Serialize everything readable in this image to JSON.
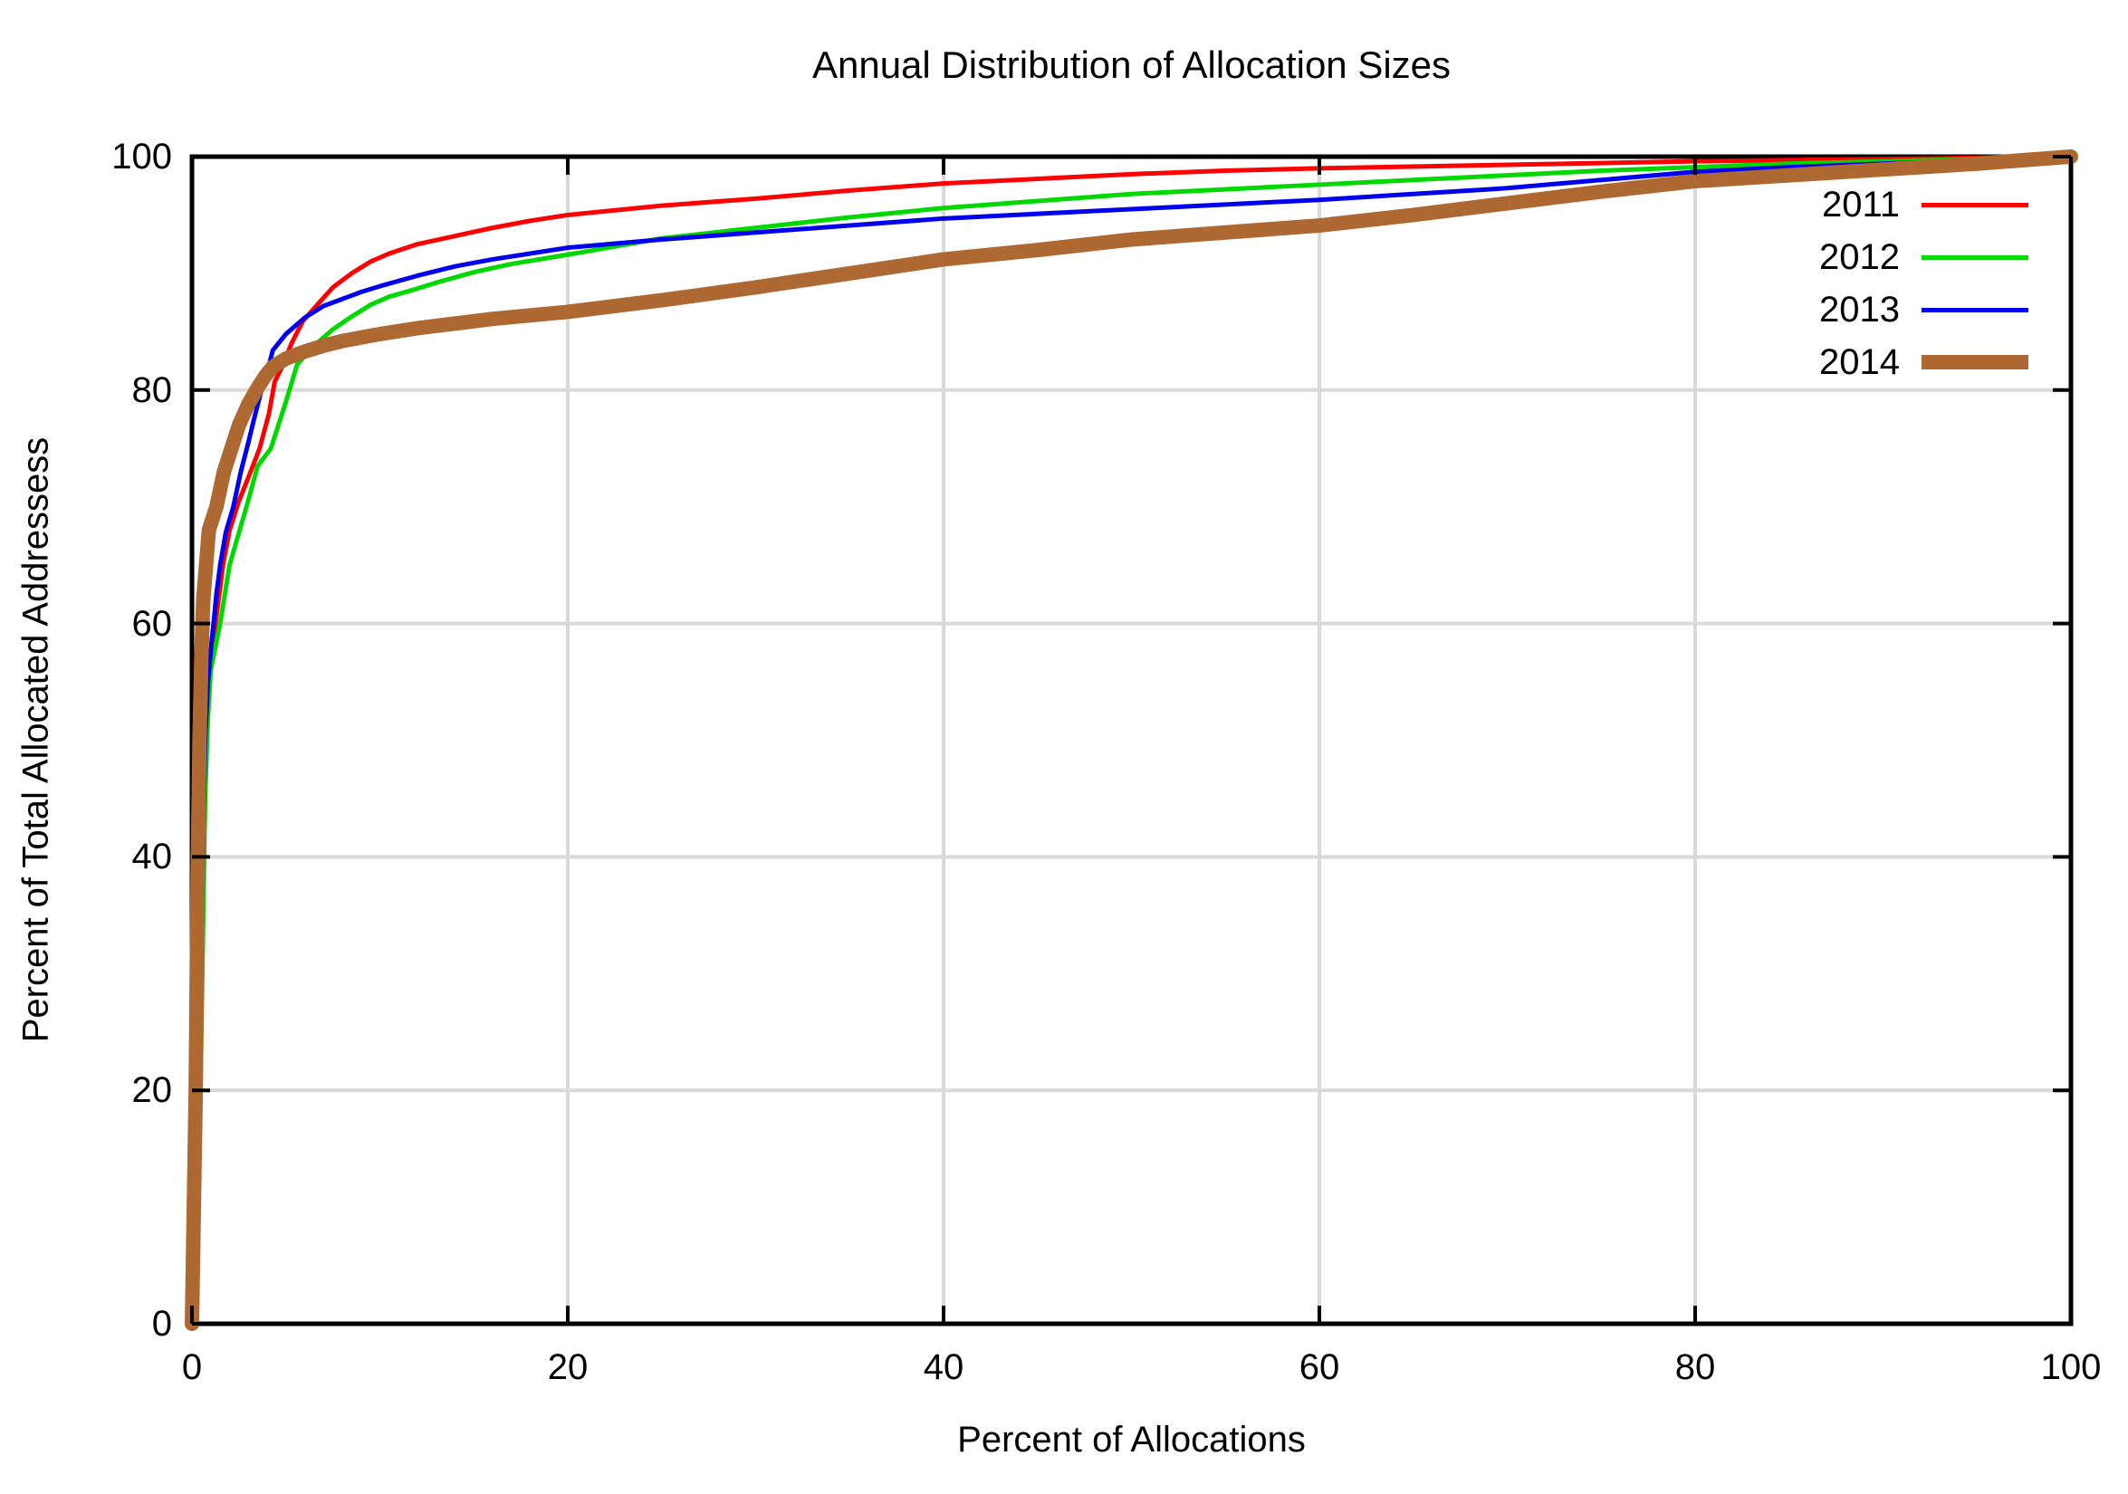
{
  "title": "Annual Distribution of Allocation Sizes",
  "chart_data": {
    "type": "line",
    "title": "Annual Distribution of Allocation Sizes",
    "xlabel": "Percent of Allocations",
    "ylabel": "Percent of Total Allocated Addressess",
    "xlim": [
      0,
      100
    ],
    "ylim": [
      0,
      100
    ],
    "xticks": [
      0,
      20,
      40,
      60,
      80,
      100
    ],
    "yticks": [
      0,
      20,
      40,
      60,
      80,
      100
    ],
    "grid": true,
    "grid_color": "#d9d9d9",
    "border_color": "#000000",
    "legend_position": "top-right-inside",
    "series": [
      {
        "name": "2011",
        "color": "#ff0000",
        "stroke_width": 5,
        "points": [
          [
            0,
            0
          ],
          [
            0.3,
            15
          ],
          [
            0.45,
            30
          ],
          [
            0.55,
            40
          ],
          [
            0.65,
            48
          ],
          [
            0.8,
            53
          ],
          [
            1.0,
            57
          ],
          [
            1.25,
            60
          ],
          [
            1.65,
            65
          ],
          [
            2.0,
            68
          ],
          [
            2.5,
            70.5
          ],
          [
            3.0,
            72.5
          ],
          [
            3.6,
            75
          ],
          [
            4.1,
            78
          ],
          [
            4.4,
            80.7
          ],
          [
            4.8,
            82
          ],
          [
            5.3,
            84
          ],
          [
            5.9,
            85.9
          ],
          [
            6.5,
            87
          ],
          [
            7.5,
            88.8
          ],
          [
            8.5,
            90
          ],
          [
            9.5,
            91
          ],
          [
            10.5,
            91.7
          ],
          [
            12,
            92.5
          ],
          [
            14,
            93.2
          ],
          [
            16,
            93.9
          ],
          [
            18,
            94.5
          ],
          [
            20,
            95.0
          ],
          [
            25,
            95.8
          ],
          [
            30,
            96.4
          ],
          [
            35,
            97.1
          ],
          [
            40,
            97.7
          ],
          [
            45,
            98.1
          ],
          [
            50,
            98.5
          ],
          [
            55,
            98.8
          ],
          [
            60,
            99.0
          ],
          [
            70,
            99.3
          ],
          [
            80,
            99.6
          ],
          [
            90,
            99.8
          ],
          [
            100,
            100
          ]
        ]
      },
      {
        "name": "2012",
        "color": "#00d800",
        "stroke_width": 5,
        "points": [
          [
            0,
            0
          ],
          [
            0.4,
            15
          ],
          [
            0.55,
            30
          ],
          [
            0.7,
            45
          ],
          [
            0.85,
            52
          ],
          [
            1.0,
            56
          ],
          [
            1.5,
            60
          ],
          [
            2.0,
            65
          ],
          [
            2.9,
            70
          ],
          [
            3.5,
            73.5
          ],
          [
            4.2,
            75
          ],
          [
            4.6,
            77
          ],
          [
            5.0,
            79
          ],
          [
            5.6,
            82.2
          ],
          [
            6.5,
            83.8
          ],
          [
            7.5,
            85.2
          ],
          [
            8.5,
            86.3
          ],
          [
            9.5,
            87.3
          ],
          [
            10.5,
            88.0
          ],
          [
            11.8,
            88.6
          ],
          [
            13,
            89.2
          ],
          [
            15,
            90.1
          ],
          [
            17,
            90.8
          ],
          [
            20,
            91.6
          ],
          [
            25,
            93.0
          ],
          [
            30,
            93.9
          ],
          [
            35,
            94.8
          ],
          [
            40,
            95.6
          ],
          [
            45,
            96.2
          ],
          [
            50,
            96.8
          ],
          [
            55,
            97.2
          ],
          [
            60,
            97.6
          ],
          [
            65,
            98.0
          ],
          [
            70,
            98.4
          ],
          [
            75,
            98.8
          ],
          [
            80,
            99.1
          ],
          [
            85,
            99.4
          ],
          [
            90,
            99.6
          ],
          [
            95,
            99.8
          ],
          [
            100,
            100
          ]
        ]
      },
      {
        "name": "2013",
        "color": "#0000ee",
        "stroke_width": 5,
        "points": [
          [
            0,
            0
          ],
          [
            0.3,
            12
          ],
          [
            0.5,
            30
          ],
          [
            0.6,
            42
          ],
          [
            0.7,
            50
          ],
          [
            0.85,
            55
          ],
          [
            1.05,
            58.5
          ],
          [
            1.15,
            60
          ],
          [
            1.3,
            62.5
          ],
          [
            1.5,
            65
          ],
          [
            1.8,
            67.8
          ],
          [
            2.2,
            70
          ],
          [
            2.6,
            73
          ],
          [
            3.0,
            75.5
          ],
          [
            3.3,
            77.5
          ],
          [
            3.7,
            80
          ],
          [
            4.0,
            81.5
          ],
          [
            4.3,
            83.4
          ],
          [
            5,
            84.8
          ],
          [
            6,
            86.2
          ],
          [
            7,
            87.2
          ],
          [
            8,
            87.8
          ],
          [
            9,
            88.4
          ],
          [
            10,
            88.9
          ],
          [
            12,
            89.8
          ],
          [
            14,
            90.6
          ],
          [
            16,
            91.2
          ],
          [
            18,
            91.7
          ],
          [
            20,
            92.2
          ],
          [
            25,
            92.9
          ],
          [
            30,
            93.5
          ],
          [
            35,
            94.1
          ],
          [
            40,
            94.7
          ],
          [
            45,
            95.1
          ],
          [
            50,
            95.5
          ],
          [
            55,
            95.9
          ],
          [
            60,
            96.3
          ],
          [
            65,
            96.8
          ],
          [
            70,
            97.3
          ],
          [
            75,
            98.0
          ],
          [
            80,
            98.7
          ],
          [
            85,
            99.1
          ],
          [
            90,
            99.4
          ],
          [
            95,
            99.7
          ],
          [
            100,
            100
          ]
        ]
      },
      {
        "name": "2014",
        "color": "#ae6832",
        "stroke_width": 16,
        "points": [
          [
            0,
            0
          ],
          [
            0.2,
            20
          ],
          [
            0.3,
            38
          ],
          [
            0.4,
            50
          ],
          [
            0.5,
            57
          ],
          [
            0.6,
            62
          ],
          [
            0.75,
            65
          ],
          [
            0.9,
            68
          ],
          [
            1.3,
            70
          ],
          [
            1.7,
            73
          ],
          [
            2.1,
            75
          ],
          [
            2.5,
            77
          ],
          [
            3.0,
            78.8
          ],
          [
            3.5,
            80.2
          ],
          [
            3.9,
            81.2
          ],
          [
            4.3,
            82
          ],
          [
            5,
            82.7
          ],
          [
            6,
            83.3
          ],
          [
            7,
            83.8
          ],
          [
            8,
            84.2
          ],
          [
            9,
            84.5
          ],
          [
            10,
            84.8
          ],
          [
            12,
            85.3
          ],
          [
            14,
            85.7
          ],
          [
            16,
            86.1
          ],
          [
            18,
            86.4
          ],
          [
            20,
            86.7
          ],
          [
            25,
            87.7
          ],
          [
            30,
            88.8
          ],
          [
            35,
            90.0
          ],
          [
            40,
            91.2
          ],
          [
            45,
            92.0
          ],
          [
            50,
            92.9
          ],
          [
            55,
            93.5
          ],
          [
            60,
            94.1
          ],
          [
            65,
            95.0
          ],
          [
            70,
            96.0
          ],
          [
            75,
            97.0
          ],
          [
            80,
            97.9
          ],
          [
            85,
            98.4
          ],
          [
            90,
            98.9
          ],
          [
            95,
            99.4
          ],
          [
            100,
            100
          ]
        ]
      }
    ]
  }
}
